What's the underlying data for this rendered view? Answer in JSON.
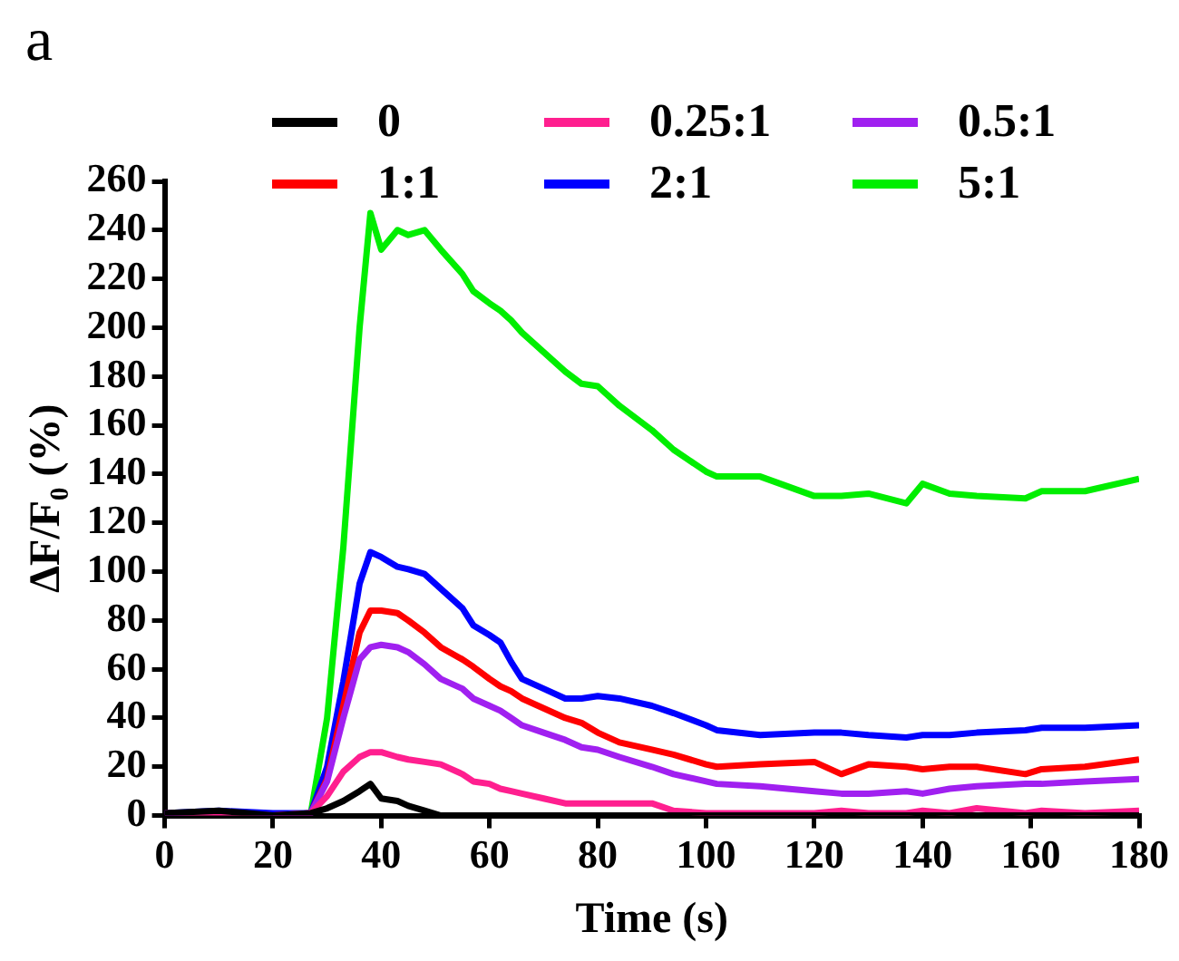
{
  "chart_data": {
    "type": "line",
    "xlabel": "Time (s)",
    "ylabel": "ΔF/F₀ (%)",
    "annotations": [
      "a"
    ],
    "x": [
      0,
      10,
      20,
      27,
      30,
      33,
      36,
      38,
      40,
      43,
      45,
      48,
      51,
      55,
      57,
      60,
      62,
      64,
      66,
      70,
      74,
      77,
      80,
      84,
      90,
      94,
      100,
      102,
      110,
      120,
      125,
      130,
      137,
      140,
      145,
      150,
      159,
      162,
      170,
      180
    ],
    "series": [
      {
        "name": "0",
        "color": "#000000",
        "values": [
          1,
          2,
          0,
          1,
          3,
          6,
          10,
          13,
          7,
          6,
          4,
          2,
          0,
          0,
          0,
          0,
          0,
          0,
          0,
          0,
          0,
          0,
          0,
          0,
          0,
          0,
          0,
          0,
          0,
          0,
          0,
          0,
          0,
          0,
          0,
          0,
          0,
          0,
          0,
          0
        ]
      },
      {
        "name": "0.25:1",
        "color": "#ff1f8f",
        "values": [
          1,
          1,
          0,
          1,
          8,
          18,
          24,
          26,
          26,
          24,
          23,
          22,
          21,
          17,
          14,
          13,
          11,
          10,
          9,
          7,
          5,
          5,
          5,
          5,
          5,
          2,
          1,
          1,
          1,
          1,
          2,
          1,
          1,
          2,
          1,
          3,
          1,
          2,
          1,
          2
        ]
      },
      {
        "name": "0.5:1",
        "color": "#a020f0",
        "values": [
          null,
          null,
          0,
          1,
          14,
          40,
          64,
          69,
          70,
          69,
          67,
          62,
          56,
          52,
          48,
          45,
          43,
          40,
          37,
          34,
          31,
          28,
          27,
          24,
          20,
          17,
          14,
          13,
          12,
          10,
          9,
          9,
          10,
          9,
          11,
          12,
          13,
          13,
          14,
          15
        ]
      },
      {
        "name": "1:1",
        "color": "#ff0000",
        "values": [
          null,
          null,
          null,
          1,
          15,
          45,
          75,
          84,
          84,
          83,
          80,
          75,
          69,
          64,
          61,
          56,
          53,
          51,
          48,
          44,
          40,
          38,
          34,
          30,
          27,
          25,
          21,
          20,
          21,
          22,
          17,
          21,
          20,
          19,
          20,
          20,
          17,
          19,
          20,
          23
        ]
      },
      {
        "name": "2:1",
        "color": "#0000ff",
        "values": [
          1,
          2,
          1,
          1,
          20,
          55,
          95,
          108,
          106,
          102,
          101,
          99,
          93,
          85,
          78,
          74,
          71,
          63,
          56,
          52,
          48,
          48,
          49,
          48,
          45,
          42,
          37,
          35,
          33,
          34,
          34,
          33,
          32,
          33,
          33,
          34,
          35,
          36,
          36,
          37
        ]
      },
      {
        "name": "5:1",
        "color": "#00ee00",
        "values": [
          null,
          null,
          null,
          1,
          40,
          110,
          200,
          247,
          232,
          240,
          238,
          240,
          232,
          222,
          215,
          210,
          207,
          203,
          198,
          190,
          182,
          177,
          176,
          168,
          158,
          150,
          141,
          139,
          139,
          131,
          131,
          132,
          128,
          136,
          132,
          131,
          130,
          133,
          133,
          138
        ]
      }
    ],
    "xlim": [
      0,
      180
    ],
    "xticks": [
      0,
      20,
      40,
      60,
      80,
      100,
      120,
      140,
      160,
      180
    ],
    "ylim": [
      0,
      260
    ],
    "yticks": [
      0,
      20,
      40,
      60,
      80,
      100,
      120,
      140,
      160,
      180,
      200,
      220,
      240,
      260
    ],
    "grid": false,
    "legend": "top",
    "marker": "none",
    "line_style": "solid"
  }
}
